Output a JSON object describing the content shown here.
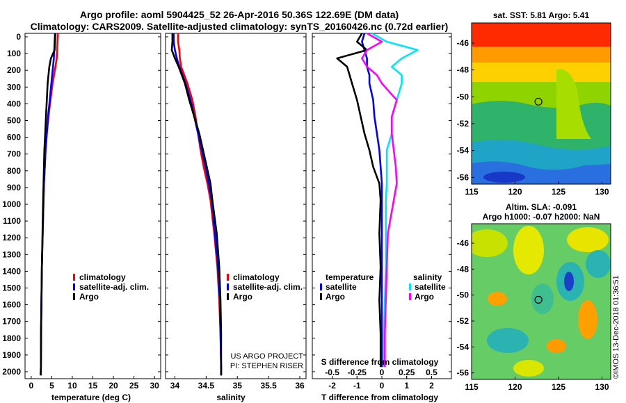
{
  "header": {
    "title1": "Argo profile: aoml 5904425_52 26-Apr-2016 50.36S 122.69E (DM data)",
    "title2": "Climatology: CARS2009. Satellite-adjusted climatology: synTS_20160426.nc (0.72d earlier)"
  },
  "depth_ticks": [
    "0",
    "100",
    "200",
    "300",
    "400",
    "500",
    "600",
    "700",
    "800",
    "900",
    "1000",
    "1100",
    "1200",
    "1300",
    "1400",
    "1500",
    "1600",
    "1700",
    "1800",
    "1900",
    "2000"
  ],
  "colors": {
    "climatology": "#ff0000",
    "satellite": "#0000ff",
    "argo": "#000000",
    "sal_sat": "#00e5ff",
    "sal_argo": "#ff00ff"
  },
  "chart_data": [
    {
      "type": "line",
      "name": "temperature",
      "xlabel": "temperature (deg C)",
      "xlim": [
        -1.5,
        31.5
      ],
      "ylim": [
        2070,
        0
      ],
      "xticks": [
        "0",
        "5",
        "10",
        "15",
        "20",
        "25",
        "30"
      ],
      "legend": {
        "climatology": "climatology",
        "satellite": "satellite-adj. clim.",
        "argo": "Argo"
      },
      "depth": [
        0,
        50,
        100,
        150,
        200,
        300,
        400,
        500,
        600,
        700,
        800,
        900,
        1000,
        1200,
        1400,
        1600,
        1800,
        2000,
        2050
      ],
      "series": [
        {
          "name": "climatology",
          "values": [
            6.5,
            6.4,
            6.3,
            6.2,
            5.9,
            5.2,
            4.7,
            4.2,
            3.8,
            3.5,
            3.3,
            3.1,
            3.0,
            2.8,
            2.6,
            2.5,
            2.4,
            2.35,
            2.3
          ]
        },
        {
          "name": "satellite-adj. clim.",
          "values": [
            5.8,
            5.7,
            5.6,
            5.5,
            5.3,
            4.9,
            4.5,
            4.1,
            3.8,
            3.5,
            3.3,
            3.1,
            3.0,
            2.8,
            2.6,
            2.5,
            2.4,
            2.35,
            2.3
          ]
        },
        {
          "name": "Argo",
          "values": [
            5.9,
            5.8,
            5.7,
            4.8,
            4.4,
            4.0,
            3.8,
            3.6,
            3.4,
            3.2,
            3.1,
            3.0,
            2.9,
            2.75,
            2.6,
            2.5,
            2.4,
            2.35,
            2.3
          ]
        }
      ]
    },
    {
      "type": "line",
      "name": "salinity",
      "xlabel": "salinity",
      "xlim": [
        33.85,
        36.1
      ],
      "ylim": [
        2070,
        0
      ],
      "xticks": [
        "34",
        "34.5",
        "35",
        "35.5",
        "36"
      ],
      "legend": {
        "climatology": "climatology",
        "satellite": "satellite-adj. clim.",
        "argo": "Argo"
      },
      "annotation": [
        "US ARGO PROJECT",
        "PI: STEPHEN RISER"
      ],
      "depth": [
        0,
        50,
        100,
        150,
        200,
        300,
        400,
        500,
        600,
        700,
        800,
        900,
        1000,
        1200,
        1400,
        1600,
        1800,
        2000,
        2050
      ],
      "series": [
        {
          "name": "climatology",
          "values": [
            34.05,
            34.05,
            34.07,
            34.08,
            34.1,
            34.2,
            34.28,
            34.33,
            34.37,
            34.41,
            34.46,
            34.52,
            34.57,
            34.63,
            34.68,
            34.71,
            34.73,
            34.74,
            34.74
          ]
        },
        {
          "name": "satellite-adj. clim.",
          "values": [
            33.98,
            33.98,
            34.0,
            34.03,
            34.07,
            34.17,
            34.25,
            34.31,
            34.37,
            34.43,
            34.49,
            34.54,
            34.59,
            34.64,
            34.69,
            34.72,
            34.73,
            34.74,
            34.74
          ]
        },
        {
          "name": "Argo",
          "values": [
            33.96,
            33.96,
            33.95,
            34.0,
            34.06,
            34.16,
            34.23,
            34.31,
            34.39,
            34.45,
            34.51,
            34.57,
            34.6,
            34.67,
            34.71,
            34.73,
            34.74,
            34.74,
            34.74
          ]
        }
      ]
    },
    {
      "type": "line",
      "name": "difference",
      "xlabel": "T difference from climatology",
      "x2label": "S difference from climatology",
      "xlim": [
        -2.8,
        2.8
      ],
      "ylim": [
        2070,
        0
      ],
      "xticks": [
        "-2",
        "-1",
        "0",
        "1",
        "2"
      ],
      "x2ticks": [
        "-0.5",
        "-0.25",
        "0",
        "0.25",
        "0.5"
      ],
      "legend": {
        "temperature": "temperature",
        "salinity": "salinity",
        "satellite": "satellite",
        "argo": "Argo"
      },
      "depth": [
        0,
        50,
        100,
        150,
        200,
        250,
        300,
        400,
        500,
        600,
        700,
        800,
        900,
        1000,
        1200,
        1400,
        1600,
        1800,
        2000
      ],
      "series": [
        {
          "name": "T satellite",
          "values": [
            -0.7,
            -0.8,
            -0.7,
            -0.6,
            -0.6,
            -0.5,
            -0.5,
            -0.35,
            -0.3,
            -0.2,
            -0.1,
            -0.05,
            0,
            0,
            0,
            0,
            0,
            0,
            0
          ]
        },
        {
          "name": "T Argo",
          "values": [
            -0.8,
            -1.0,
            -0.6,
            -1.8,
            -1.4,
            -1.3,
            -1.2,
            -1.0,
            -0.85,
            -0.7,
            -0.5,
            -0.35,
            -0.1,
            -0.05,
            -0.1,
            -0.05,
            -0.1,
            -0.05,
            -0.05
          ]
        },
        {
          "name": "S satellite",
          "values": [
            -0.1,
            0.05,
            0.36,
            0.2,
            0.1,
            0.2,
            0.2,
            0.15,
            0.1,
            0.1,
            0.05,
            0.05,
            0.05,
            0.04,
            0.04,
            0.04,
            0.03,
            0.02,
            0.02
          ]
        },
        {
          "name": "S Argo",
          "values": [
            -0.15,
            0.0,
            -0.15,
            -0.2,
            -0.15,
            -0.05,
            0.0,
            0.15,
            0.1,
            0.1,
            0.12,
            0.14,
            0.15,
            0.12,
            0.06,
            0.05,
            0.04,
            0.03,
            0.03
          ]
        }
      ]
    },
    {
      "type": "heatmap",
      "name": "sst-map",
      "title": "sat. SST: 5.81 Argo: 5.41",
      "xlim": [
        115,
        131
      ],
      "ylim": [
        -56.5,
        -44.5
      ],
      "xticks": [
        "115",
        "120",
        "125",
        "130"
      ],
      "yticks": [
        "-46",
        "-48",
        "-50",
        "-52",
        "-54",
        "-56"
      ],
      "marker": {
        "lon": 122.69,
        "lat": -50.36
      }
    },
    {
      "type": "heatmap",
      "name": "sla-map",
      "title1": "Altim. SLA: -0.091",
      "title2": "Argo h1000: -0.07 h2000: NaN",
      "xlim": [
        115,
        131
      ],
      "ylim": [
        -56.5,
        -44.5
      ],
      "xticks": [
        "115",
        "120",
        "125",
        "130"
      ],
      "yticks": [
        "-46",
        "-48",
        "-50",
        "-52",
        "-54",
        "-56"
      ],
      "marker": {
        "lon": 122.69,
        "lat": -50.36
      }
    }
  ],
  "watermark": "©IMOS 13-Dec-2018 01:36:51"
}
